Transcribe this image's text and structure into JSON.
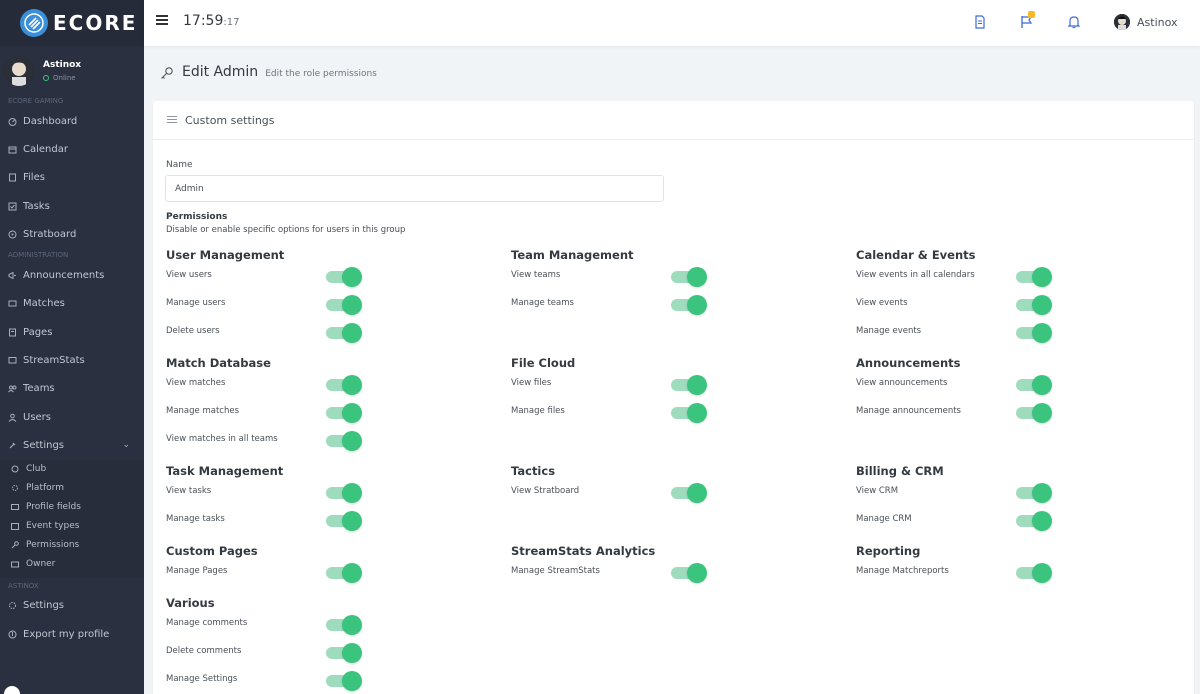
{
  "brand": {
    "name": "ECORE"
  },
  "sidebar": {
    "user": {
      "name": "Astinox",
      "status": "Online"
    },
    "sections": [
      {
        "title": "ECORE GAMING",
        "items": [
          {
            "label": "Dashboard",
            "icon": "dashboard-icon"
          },
          {
            "label": "Calendar",
            "icon": "calendar-icon"
          },
          {
            "label": "Files",
            "icon": "files-icon"
          },
          {
            "label": "Tasks",
            "icon": "tasks-icon"
          },
          {
            "label": "Stratboard",
            "icon": "stratboard-icon"
          }
        ]
      },
      {
        "title": "ADMINISTRATION",
        "items": [
          {
            "label": "Announcements",
            "icon": "megaphone-icon"
          },
          {
            "label": "Matches",
            "icon": "matches-icon"
          },
          {
            "label": "Pages",
            "icon": "pages-icon"
          },
          {
            "label": "StreamStats",
            "icon": "streamstats-icon"
          },
          {
            "label": "Teams",
            "icon": "teams-icon"
          },
          {
            "label": "Users",
            "icon": "users-icon"
          },
          {
            "label": "Settings",
            "icon": "settings-icon"
          }
        ]
      },
      {
        "title": "ASTINOX",
        "items": [
          {
            "label": "Settings",
            "icon": "settings-icon"
          },
          {
            "label": "Export my profile",
            "icon": "export-icon"
          }
        ]
      }
    ],
    "settings_sub": [
      {
        "label": "Club",
        "icon": "club-icon"
      },
      {
        "label": "Platform",
        "icon": "platform-icon"
      },
      {
        "label": "Profile fields",
        "icon": "profile-fields-icon"
      },
      {
        "label": "Event types",
        "icon": "event-types-icon"
      },
      {
        "label": "Permissions",
        "icon": "permissions-icon"
      },
      {
        "label": "Owner",
        "icon": "owner-icon"
      }
    ]
  },
  "header": {
    "time_hm": "17:59",
    "time_s": ":17",
    "username": "Astinox",
    "icons": [
      "document-icon",
      "flag-icon",
      "bell-icon"
    ]
  },
  "page": {
    "title": "Edit Admin",
    "subtitle": "Edit the role permissions"
  },
  "card": {
    "title": "Custom settings",
    "name_label": "Name",
    "name_value": "Admin",
    "permissions_title": "Permissions",
    "permissions_desc": "Disable or enable specific options for users in this group"
  },
  "groups": [
    {
      "title": "User Management",
      "items": [
        "View users",
        "Manage users",
        "Delete users"
      ]
    },
    {
      "title": "Team Management",
      "items": [
        "View teams",
        "Manage teams"
      ]
    },
    {
      "title": "Calendar & Events",
      "items": [
        "View events in all calendars",
        "View events",
        "Manage events"
      ]
    },
    {
      "title": "Match Database",
      "items": [
        "View matches",
        "Manage matches",
        "View matches in all teams"
      ]
    },
    {
      "title": "File Cloud",
      "items": [
        "View files",
        "Manage files"
      ]
    },
    {
      "title": "Announcements",
      "items": [
        "View announcements",
        "Manage announcements"
      ]
    },
    {
      "title": "Task Management",
      "items": [
        "View tasks",
        "Manage tasks"
      ]
    },
    {
      "title": "Tactics",
      "items": [
        "View Stratboard"
      ]
    },
    {
      "title": "Billing & CRM",
      "items": [
        "View CRM",
        "Manage CRM"
      ]
    },
    {
      "title": "Custom Pages",
      "items": [
        "Manage Pages"
      ]
    },
    {
      "title": "StreamStats Analytics",
      "items": [
        "Manage StreamStats"
      ]
    },
    {
      "title": "Reporting",
      "items": [
        "Manage Matchreports"
      ]
    },
    {
      "title": "Various",
      "items": [
        "Manage comments",
        "Delete comments",
        "Manage Settings"
      ]
    }
  ],
  "colors": {
    "sidebar_bg": "#2a3040",
    "toggle_on": "#3ac47d",
    "accent": "#3f6ad8",
    "badge": "#f7b924"
  }
}
